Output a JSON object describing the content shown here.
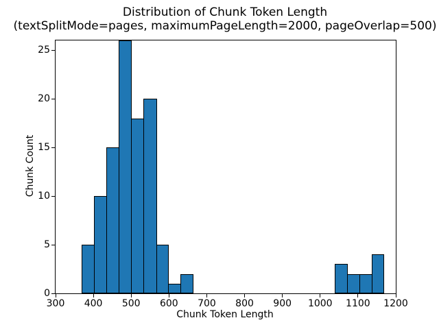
{
  "chart_data": {
    "type": "bar",
    "subtype": "histogram",
    "title": "Distribution of Chunk Token Length",
    "subtitle": "(textSplitMode=pages, maximumPageLength=2000, pageOverlap=500)",
    "xlabel": "Chunk Token Length",
    "ylabel": "Chunk Count",
    "xlim": [
      300,
      1200
    ],
    "ylim": [
      0,
      26
    ],
    "x_ticks": [
      300,
      400,
      500,
      600,
      700,
      800,
      900,
      1000,
      1100,
      1200
    ],
    "y_ticks": [
      0,
      5,
      10,
      15,
      20,
      25
    ],
    "grid": false,
    "legend": "none",
    "bins": [
      {
        "x0": 369,
        "x1": 402,
        "count": 5
      },
      {
        "x0": 402,
        "x1": 435,
        "count": 10
      },
      {
        "x0": 435,
        "x1": 467,
        "count": 15
      },
      {
        "x0": 467,
        "x1": 500,
        "count": 26
      },
      {
        "x0": 500,
        "x1": 533,
        "count": 18
      },
      {
        "x0": 533,
        "x1": 566,
        "count": 20
      },
      {
        "x0": 566,
        "x1": 598,
        "count": 5
      },
      {
        "x0": 598,
        "x1": 631,
        "count": 1
      },
      {
        "x0": 631,
        "x1": 664,
        "count": 2
      },
      {
        "x0": 1039,
        "x1": 1072,
        "count": 3
      },
      {
        "x0": 1072,
        "x1": 1104,
        "count": 2
      },
      {
        "x0": 1104,
        "x1": 1137,
        "count": 2
      },
      {
        "x0": 1137,
        "x1": 1169,
        "count": 4
      }
    ],
    "colors": {
      "bar_fill": "#1f77b4",
      "bar_edge": "#000000",
      "axis": "#000000",
      "text": "#000000",
      "background": "#ffffff"
    }
  }
}
